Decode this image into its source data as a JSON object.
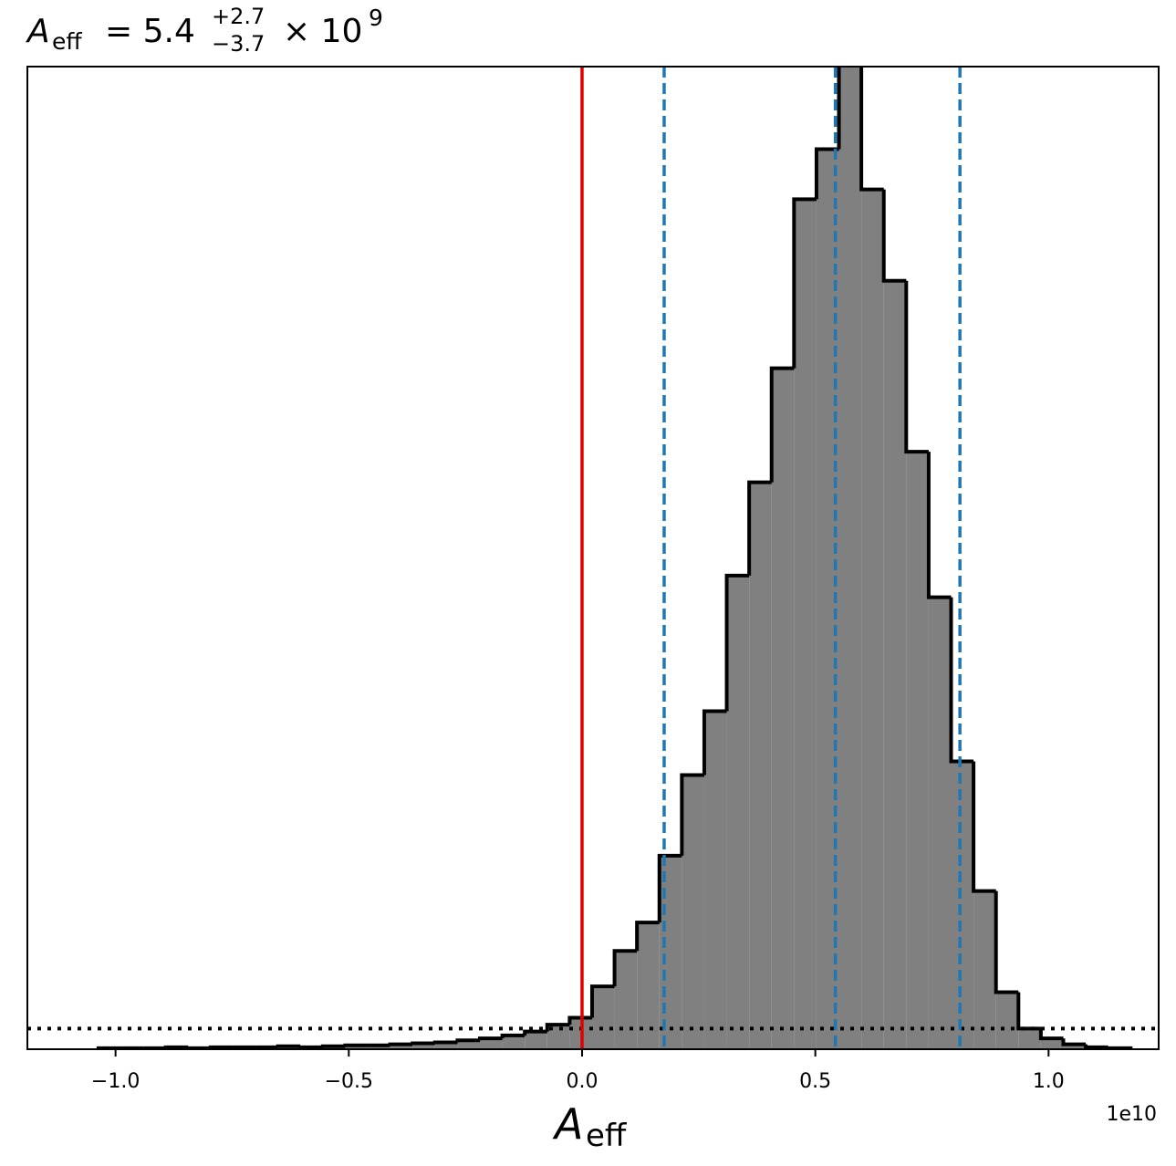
{
  "chart_data": {
    "type": "histogram",
    "title": {
      "symbol": "A",
      "subscript": "eff",
      "text": "= 5.4",
      "upper": "+2.7",
      "lower": "−3.7",
      "suffix": "× 10",
      "power": "9"
    },
    "xlabel": {
      "symbol": "A",
      "subscript": "eff"
    },
    "x_offset_label": "1e10",
    "bins": [
      -1.0367,
      -0.9886,
      -0.9405,
      -0.8924,
      -0.8443,
      -0.7962,
      -0.7481,
      -0.7,
      -0.6519,
      -0.6038,
      -0.5557,
      -0.5076,
      -0.4595,
      -0.4114,
      -0.3633,
      -0.3152,
      -0.2671,
      -0.219,
      -0.1709,
      -0.1228,
      -0.0747,
      -0.0266,
      0.0215,
      0.0696,
      0.1177,
      0.1658,
      0.2139,
      0.262,
      0.3101,
      0.3582,
      0.4063,
      0.4544,
      0.5025,
      0.5506,
      0.5987,
      0.6468,
      0.6949,
      0.743,
      0.7911,
      0.8392,
      0.8873,
      0.9354,
      0.9835,
      1.0316,
      1.0797,
      1.1278,
      1.1759
    ],
    "values": [
      0.1,
      0.1,
      0.1,
      0.2,
      0.1,
      0.2,
      0.2,
      0.2,
      0.3,
      0.2,
      0.3,
      0.4,
      0.4,
      0.5,
      0.6,
      0.7,
      0.9,
      1.1,
      1.4,
      1.8,
      2.5,
      3.2,
      6.4,
      10.0,
      12.9,
      19.7,
      27.9,
      34.4,
      48.2,
      57.7,
      69.3,
      86.5,
      91.6,
      102,
      87.5,
      78.2,
      60.8,
      46.0,
      29.3,
      16.1,
      5.8,
      2.1,
      1.1,
      0.5,
      0.2,
      0.1
    ],
    "color": "#808080",
    "edge_color": "#000000",
    "xlim": [
      -1.189,
      1.236
    ],
    "ylim": [
      0,
      100
    ],
    "xticks": [
      {
        "value": -1,
        "label": "−1.0"
      },
      {
        "value": -0.5,
        "label": "−0.5"
      },
      {
        "value": 0,
        "label": "0.0"
      },
      {
        "value": 0.5,
        "label": "0.5"
      },
      {
        "value": 1,
        "label": "1.0"
      }
    ],
    "vlines": [
      {
        "value": 0,
        "color": "#e00000",
        "style": "solid"
      },
      {
        "value": 0.176,
        "color": "#1f77b4",
        "style": "dashed"
      },
      {
        "value": 0.543,
        "color": "#1f77b4",
        "style": "dashed"
      },
      {
        "value": 0.81,
        "color": "#1f77b4",
        "style": "dashed"
      }
    ],
    "hlines": [
      {
        "value": 2.1,
        "color": "#000000",
        "style": "dotted"
      }
    ]
  }
}
